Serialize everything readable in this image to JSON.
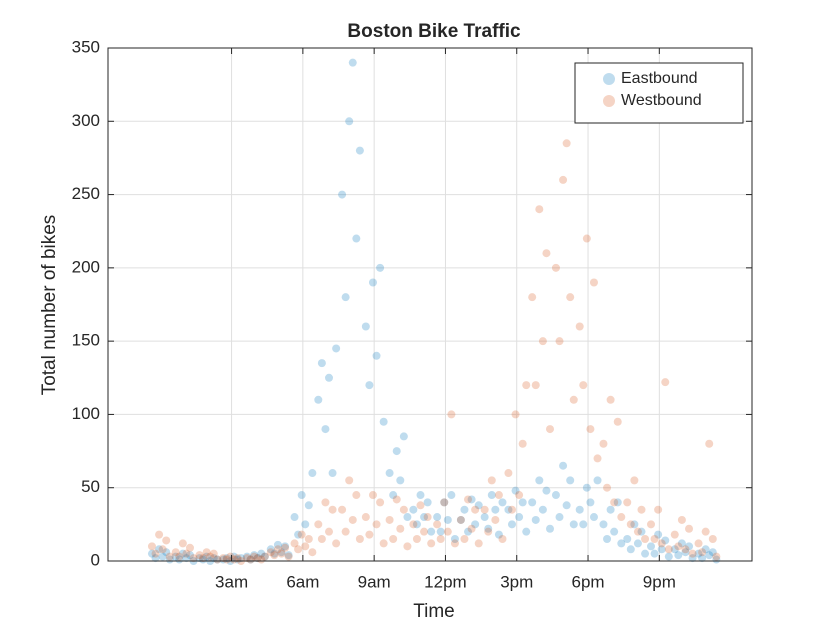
{
  "chart_data": {
    "type": "scatter",
    "title": "Boston Bike Traffic",
    "xlabel": "Time",
    "ylabel": "Total number of bikes",
    "xlim": [
      -2.2,
      24.9
    ],
    "ylim": [
      0,
      350
    ],
    "xticks": [
      {
        "value": 3,
        "label": "3am"
      },
      {
        "value": 6,
        "label": "6am"
      },
      {
        "value": 9,
        "label": "9am"
      },
      {
        "value": 12,
        "label": "12pm"
      },
      {
        "value": 15,
        "label": "3pm"
      },
      {
        "value": 18,
        "label": "6pm"
      },
      {
        "value": 21,
        "label": "9pm"
      }
    ],
    "yticks": [
      0,
      50,
      100,
      150,
      200,
      250,
      300,
      350
    ],
    "grid": true,
    "legend": "northeast",
    "alpha": 0.25,
    "x": [
      -0.35,
      -0.2,
      -0.05,
      0.1,
      0.25,
      0.4,
      0.65,
      0.8,
      0.95,
      1.1,
      1.25,
      1.4,
      1.65,
      1.8,
      1.95,
      2.1,
      2.25,
      2.4,
      2.65,
      2.8,
      2.95,
      3.1,
      3.25,
      3.4,
      3.65,
      3.8,
      3.95,
      4.1,
      4.25,
      4.4,
      4.65,
      4.8,
      4.95,
      5.1,
      5.25,
      5.4,
      5.65,
      5.8,
      5.95,
      6.1,
      6.25,
      6.4,
      6.65,
      6.8,
      6.95,
      7.1,
      7.25,
      7.4,
      7.65,
      7.8,
      7.95,
      8.1,
      8.25,
      8.4,
      8.65,
      8.8,
      8.95,
      9.1,
      9.25,
      9.4,
      9.65,
      9.8,
      9.95,
      10.1,
      10.25,
      10.4,
      10.65,
      10.8,
      10.95,
      11.1,
      11.25,
      11.4,
      11.65,
      11.8,
      11.95,
      12.1,
      12.25,
      12.4,
      12.65,
      12.8,
      12.95,
      13.1,
      13.25,
      13.4,
      13.65,
      13.8,
      13.95,
      14.1,
      14.25,
      14.4,
      14.65,
      14.8,
      14.95,
      15.1,
      15.25,
      15.4,
      15.65,
      15.8,
      15.95,
      16.1,
      16.25,
      16.4,
      16.65,
      16.8,
      16.95,
      17.1,
      17.25,
      17.4,
      17.65,
      17.8,
      17.95,
      18.1,
      18.25,
      18.4,
      18.65,
      18.8,
      18.95,
      19.1,
      19.25,
      19.4,
      19.65,
      19.8,
      19.95,
      20.1,
      20.25,
      20.4,
      20.65,
      20.8,
      20.95,
      21.1,
      21.25,
      21.4,
      21.65,
      21.8,
      21.95,
      22.1,
      22.25,
      22.4,
      22.65,
      22.8,
      22.95,
      23.1,
      23.25,
      23.4
    ],
    "series": [
      {
        "name": "Eastbound",
        "color": "#0072bd",
        "values": [
          5,
          2,
          8,
          3,
          6,
          1,
          3,
          1,
          5,
          2,
          4,
          0,
          2,
          1,
          3,
          0,
          2,
          1,
          1,
          2,
          0,
          3,
          1,
          2,
          3,
          1,
          4,
          2,
          5,
          3,
          8,
          5,
          11,
          6,
          10,
          4,
          30,
          18,
          45,
          25,
          38,
          60,
          110,
          135,
          90,
          125,
          60,
          145,
          250,
          180,
          300,
          340,
          220,
          280,
          160,
          120,
          190,
          140,
          200,
          95,
          60,
          45,
          75,
          55,
          85,
          30,
          35,
          25,
          45,
          30,
          40,
          20,
          30,
          20,
          40,
          28,
          45,
          15,
          28,
          35,
          20,
          42,
          25,
          38,
          30,
          22,
          45,
          35,
          18,
          40,
          35,
          25,
          48,
          30,
          40,
          20,
          40,
          28,
          55,
          35,
          48,
          22,
          45,
          30,
          65,
          38,
          55,
          25,
          35,
          25,
          50,
          40,
          30,
          55,
          25,
          15,
          35,
          20,
          40,
          12,
          15,
          8,
          25,
          12,
          20,
          5,
          10,
          5,
          18,
          8,
          14,
          3,
          8,
          4,
          12,
          6,
          10,
          2,
          5,
          2,
          8,
          4,
          6,
          1
        ]
      },
      {
        "name": "Westbound",
        "color": "#d95319",
        "values": [
          10,
          5,
          18,
          8,
          14,
          3,
          6,
          3,
          12,
          5,
          9,
          2,
          4,
          2,
          6,
          3,
          5,
          1,
          2,
          1,
          3,
          1,
          2,
          0,
          2,
          1,
          3,
          2,
          1,
          3,
          6,
          4,
          8,
          5,
          9,
          3,
          12,
          8,
          18,
          10,
          15,
          6,
          25,
          15,
          40,
          20,
          35,
          12,
          35,
          20,
          55,
          28,
          45,
          15,
          30,
          18,
          45,
          25,
          40,
          12,
          28,
          15,
          42,
          22,
          35,
          10,
          25,
          15,
          38,
          20,
          30,
          12,
          25,
          15,
          40,
          20,
          100,
          12,
          28,
          15,
          42,
          22,
          35,
          12,
          35,
          20,
          55,
          28,
          45,
          15,
          60,
          35,
          100,
          45,
          80,
          120,
          180,
          120,
          240,
          150,
          210,
          90,
          200,
          150,
          260,
          285,
          180,
          110,
          160,
          120,
          220,
          90,
          190,
          70,
          80,
          50,
          110,
          40,
          95,
          30,
          40,
          25,
          55,
          20,
          35,
          15,
          25,
          15,
          35,
          12,
          122,
          8,
          18,
          10,
          28,
          8,
          22,
          5,
          12,
          6,
          20,
          80,
          15,
          3
        ]
      }
    ]
  }
}
